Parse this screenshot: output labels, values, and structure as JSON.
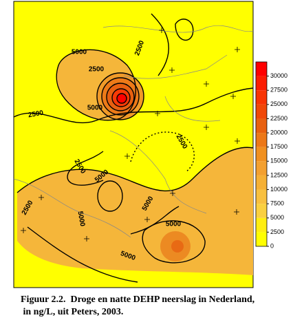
{
  "figure": {
    "caption": [
      "Figuur 2.2.  Droge en natte DEHP neerslag in Nederland,",
      " in ng/L, uit Peters, 2003."
    ],
    "colorbar": {
      "lim": [
        0,
        32500
      ],
      "ticks": [
        0,
        2500,
        5000,
        7500,
        10000,
        12500,
        15000,
        17500,
        20000,
        22500,
        25000,
        27500,
        30000
      ],
      "colors": [
        "#ffff00",
        "#ffee10",
        "#fad040",
        "#f8c040",
        "#f5b035",
        "#f3a030",
        "#f09020",
        "#ec7818",
        "#e86010",
        "#f04808",
        "#f83404",
        "#fc1c02",
        "#ff0000"
      ]
    },
    "contour_labels": [
      5000,
      2500,
      2500,
      5000,
      2500,
      2500,
      2500,
      5000,
      5000,
      2500,
      5000,
      5000,
      5000
    ]
  }
}
